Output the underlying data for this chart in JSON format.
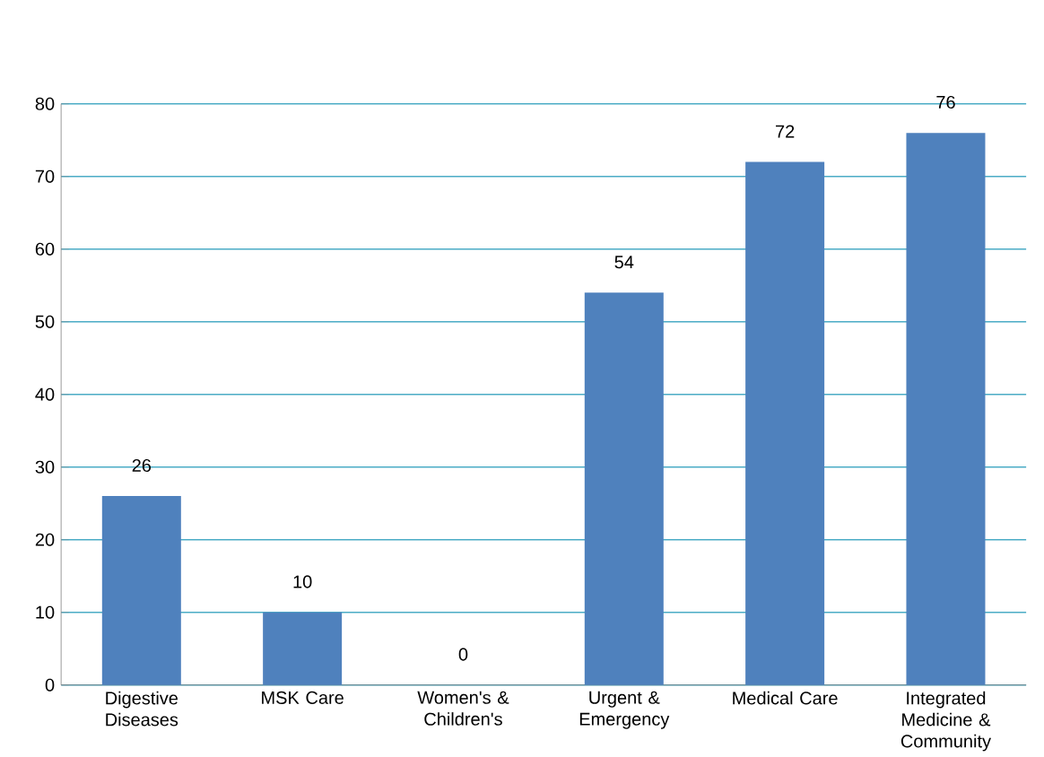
{
  "chart_data": {
    "type": "bar",
    "categories": [
      "Digestive Diseases",
      "MSK Care",
      "Women's & Children's",
      "Urgent & Emergency",
      "Medical Care",
      "Integrated Medicine & Community"
    ],
    "values": [
      26,
      10,
      0,
      54,
      72,
      76
    ],
    "color": "#4f81bd",
    "ylim": [
      0,
      80
    ],
    "yticks": [
      0,
      10,
      20,
      30,
      40,
      50,
      60,
      70,
      80
    ],
    "grid": "y",
    "data_labels": true
  }
}
